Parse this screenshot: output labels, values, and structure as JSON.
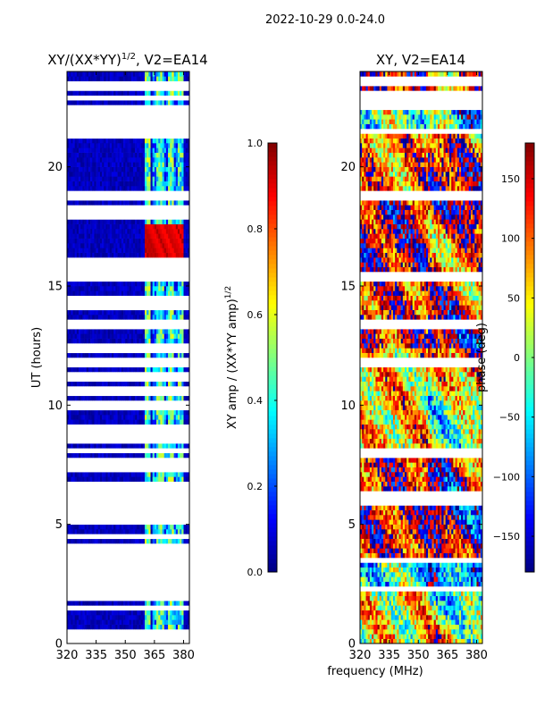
{
  "figure": {
    "suptitle": "2022-10-29 0.0-24.0",
    "xlabel": "frequency (MHz)",
    "colors": {
      "background": "#ffffff",
      "gap": "#ffffff",
      "frame": "#000000"
    }
  },
  "chart_data": [
    {
      "type": "heatmap",
      "title": "XY/(XX*YY)",
      "title_exponent": "1/2",
      "title_suffix": ", V2=EA14",
      "xlabel": "frequency (MHz)",
      "ylabel": "UT (hours)",
      "xlim": [
        320,
        383
      ],
      "ylim": [
        0,
        24
      ],
      "xticks": [
        "320",
        "335",
        "350",
        "365",
        "380"
      ],
      "xtick_values": [
        320,
        335,
        350,
        365,
        380
      ],
      "yticks": [
        "0",
        "5",
        "10",
        "15",
        "20"
      ],
      "ytick_values": [
        0,
        5,
        10,
        15,
        20
      ],
      "colormap": "jet",
      "colorbar": {
        "label": "XY amp / (XX*YY amp)",
        "label_exponent": "1/2",
        "vmin": 0.0,
        "vmax": 1.0,
        "ticks": [
          "0.0",
          "0.2",
          "0.4",
          "0.6",
          "0.8",
          "1.0"
        ],
        "tick_values": [
          0.0,
          0.2,
          0.4,
          0.6,
          0.8,
          1.0
        ]
      },
      "background_value": 0.06,
      "bright_channels_mhz": [
        {
          "from": 360.5,
          "to": 363.0,
          "value": 0.45
        },
        {
          "from": 364.0,
          "to": 366.0,
          "value": 0.28
        },
        {
          "from": 366.5,
          "to": 369.5,
          "value": 0.42
        },
        {
          "from": 370.0,
          "to": 372.0,
          "value": 0.22
        },
        {
          "from": 372.5,
          "to": 375.0,
          "value": 0.45
        },
        {
          "from": 375.5,
          "to": 377.0,
          "value": 0.25
        },
        {
          "from": 377.5,
          "to": 380.0,
          "value": 0.4
        }
      ],
      "high_region": {
        "x": [
          360.5,
          380.0
        ],
        "y": [
          16.2,
          17.6
        ],
        "value": 0.92
      },
      "flagged_hours": [
        0.2,
        0.4,
        1.5,
        2.0,
        2.2,
        2.6,
        2.9,
        3.1,
        3.3,
        3.6,
        4.0,
        4.5,
        5.2,
        5.6,
        5.8,
        6.2,
        6.4,
        6.7,
        7.4,
        7.7,
        8.1,
        8.6,
        9.0,
        10.0,
        10.6,
        11.2,
        11.8,
        11.9,
        12.4,
        13.3,
        13.5,
        14.2,
        14.5,
        15.4,
        15.6,
        16.0,
        17.9,
        18.2,
        18.7,
        18.9,
        21.4,
        21.6,
        21.9,
        22.0,
        22.2,
        22.4,
        22.9,
        23.3,
        23.5
      ]
    },
    {
      "type": "heatmap",
      "title": "XY, V2=EA14",
      "xlabel": "frequency (MHz)",
      "ylabel": "",
      "xlim": [
        320,
        383
      ],
      "ylim": [
        0,
        24
      ],
      "xticks": [
        "320",
        "335",
        "350",
        "365",
        "380"
      ],
      "xtick_values": [
        320,
        335,
        350,
        365,
        380
      ],
      "yticks": [
        "0",
        "5",
        "10",
        "15",
        "20"
      ],
      "ytick_values": [
        0,
        5,
        10,
        15,
        20
      ],
      "colormap": "jet",
      "colorbar": {
        "label": "phase (deg)",
        "vmin": -180,
        "vmax": 180,
        "ticks": [
          "150",
          "100",
          "50",
          "0",
          "−50",
          "−100",
          "−150"
        ],
        "tick_values": [
          150,
          100,
          50,
          0,
          -50,
          -100,
          -150
        ]
      },
      "band_phases_deg": [
        {
          "from": 0.0,
          "to": 2.3,
          "value": 40
        },
        {
          "from": 2.3,
          "to": 3.6,
          "value": -30
        },
        {
          "from": 3.6,
          "to": 8.0,
          "value": 140
        },
        {
          "from": 8.0,
          "to": 12.5,
          "value": 60
        },
        {
          "from": 12.5,
          "to": 15.5,
          "value": 130
        },
        {
          "from": 15.5,
          "to": 18.8,
          "value": 160
        },
        {
          "from": 18.8,
          "to": 21.5,
          "value": 90
        },
        {
          "from": 21.5,
          "to": 22.5,
          "value": -10
        },
        {
          "from": 22.5,
          "to": 24.0,
          "value": 150
        }
      ],
      "flagged_hours": [
        2.3,
        3.5,
        6.0,
        6.2,
        8.0,
        11.8,
        13.3,
        13.5,
        15.4,
        18.8,
        21.5,
        22.6,
        23.0,
        23.6
      ]
    }
  ]
}
